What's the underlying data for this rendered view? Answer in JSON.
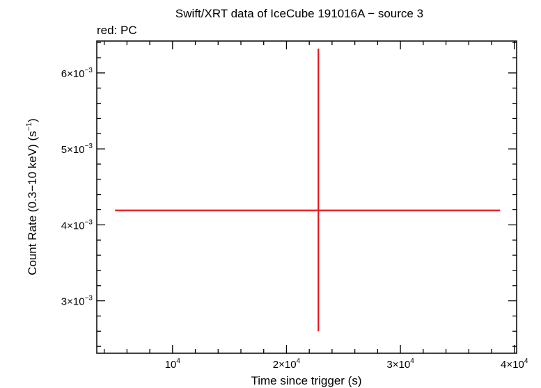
{
  "chart_data": {
    "type": "scatter",
    "title": "Swift/XRT data of IceCube 191016A − source 3",
    "subtitle": "red: PC",
    "xlabel": "Time since trigger (s)",
    "ylabel_main": "Count Rate (0.3−10 keV) (s",
    "ylabel_sup": "−1",
    "ylabel_close": ")",
    "xlim": [
      3350,
      40200
    ],
    "ylim": [
      0.00231,
      0.00642
    ],
    "x_ticks": [
      {
        "value": 10000,
        "mant": "10",
        "exp": "4"
      },
      {
        "value": 20000,
        "mant": "2×10",
        "exp": "4"
      },
      {
        "value": 30000,
        "mant": "3×10",
        "exp": "4"
      },
      {
        "value": 40000,
        "mant": "4×10",
        "exp": "4"
      }
    ],
    "y_ticks": [
      {
        "value": 0.003,
        "mant": "3×10",
        "exp": "−3"
      },
      {
        "value": 0.004,
        "mant": "4×10",
        "exp": "−3"
      },
      {
        "value": 0.005,
        "mant": "5×10",
        "exp": "−3"
      },
      {
        "value": 0.006,
        "mant": "6×10",
        "exp": "−3"
      }
    ],
    "series": [
      {
        "name": "PC",
        "color": "#e8141c",
        "points": [
          {
            "x": 22800,
            "x_lo": 4950,
            "x_hi": 38750,
            "y": 0.00419,
            "y_lo": 0.0026,
            "y_hi": 0.00632
          }
        ]
      }
    ],
    "grid": false,
    "legend": "top-left"
  }
}
